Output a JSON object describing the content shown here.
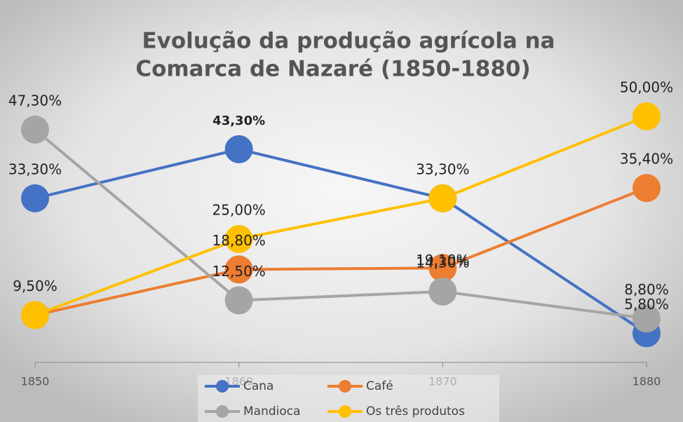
{
  "chart_data": {
    "type": "line",
    "title": [
      "Evolução da produção agrícola na",
      "Comarca de Nazaré (1850-1880)"
    ],
    "categories": [
      "1850",
      "1860",
      "1870",
      "1880"
    ],
    "ylim": [
      0,
      55
    ],
    "legend": "bottom",
    "series": [
      {
        "name": "Cana",
        "color": "#4472c4",
        "values": [
          33.3,
          43.3,
          33.3,
          5.8
        ],
        "value_labels": [
          "33,30%",
          "43,30%",
          null,
          "5,80%"
        ]
      },
      {
        "name": "Café",
        "color": "#ed7d31",
        "values": [
          9.5,
          18.8,
          19.1,
          35.4
        ],
        "value_labels": [
          null,
          "18,80%",
          "19,10%",
          "35,40%"
        ]
      },
      {
        "name": "Mandioca",
        "color": "#a5a5a5",
        "values": [
          47.3,
          12.5,
          14.3,
          8.8
        ],
        "value_labels": [
          "47,30%",
          "12,50%",
          "14,30%",
          "8,80%"
        ]
      },
      {
        "name": "Os três produtos",
        "color": "#ffc000",
        "values": [
          9.5,
          25,
          33.3,
          50
        ],
        "value_labels": [
          "9,50%",
          "25,00%",
          "33,30%",
          "50,00%"
        ]
      }
    ]
  }
}
